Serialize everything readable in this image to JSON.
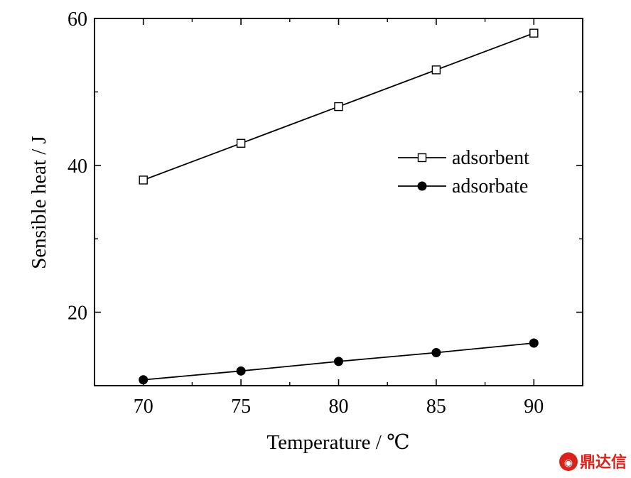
{
  "chart_data": {
    "type": "line",
    "x": [
      70,
      75,
      80,
      85,
      90
    ],
    "series": [
      {
        "name": "adsorbent",
        "values": [
          38,
          43,
          48,
          53,
          58
        ],
        "marker": "open-square",
        "color": "#000000"
      },
      {
        "name": "adsorbate",
        "values": [
          10.8,
          12.0,
          13.3,
          14.5,
          15.8
        ],
        "marker": "filled-circle",
        "color": "#000000"
      }
    ],
    "title": "",
    "xlabel": "Temperature / ℃",
    "ylabel": "Sensible heat / J",
    "xlim": [
      67.5,
      92.5
    ],
    "ylim": [
      10,
      60
    ],
    "xticks": [
      70,
      75,
      80,
      85,
      90
    ],
    "yticks": [
      20,
      40,
      60
    ],
    "grid": false,
    "legend_position": "right"
  },
  "watermark": {
    "text": "鼎达信",
    "color": "#d9221c"
  }
}
